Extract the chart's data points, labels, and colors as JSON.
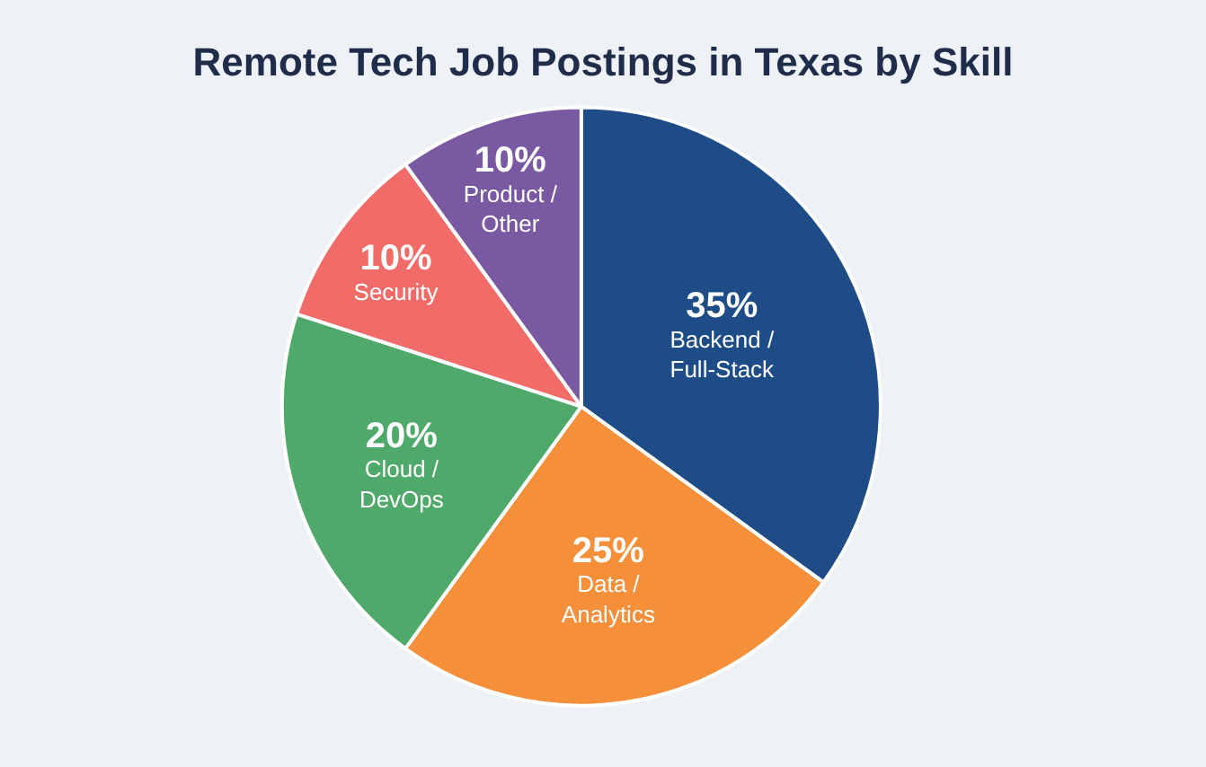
{
  "chart_data": {
    "type": "pie",
    "title": "Remote Tech Job Postings in Texas by Skill",
    "categories": [
      "Backend / Full-Stack",
      "Data / Analytics",
      "Cloud / DevOps",
      "Security",
      "Product / Other"
    ],
    "values": [
      35,
      25,
      20,
      10,
      10
    ],
    "value_labels": [
      "35%",
      "25%",
      "20%",
      "10%",
      "10%"
    ],
    "colors": [
      "#1d4c86",
      "#f58f3a",
      "#4ea96a",
      "#f16b68",
      "#7a59a3"
    ],
    "legend": false
  }
}
